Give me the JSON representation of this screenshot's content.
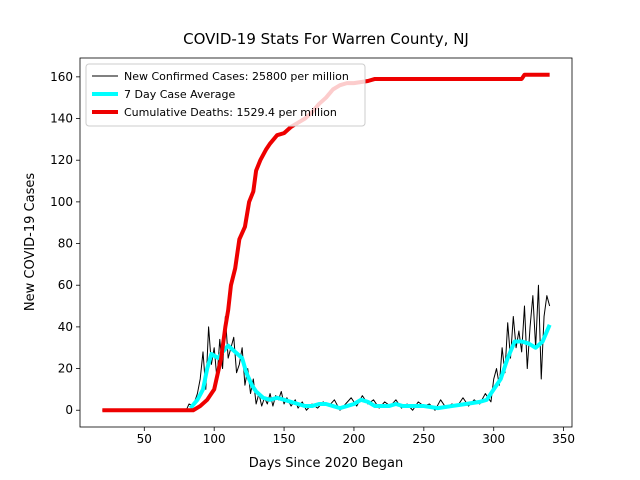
{
  "chart_data": {
    "type": "line",
    "title": "COVID-19 Stats For Warren County, NJ",
    "x_label": "Days Since 2020 Began",
    "y_label": "New COVID-19 Cases",
    "xlim": [
      4,
      356
    ],
    "ylim": [
      -8.05,
      169.05
    ],
    "xticks": [
      50,
      100,
      150,
      200,
      250,
      300,
      350
    ],
    "yticks": [
      0,
      20,
      40,
      60,
      80,
      100,
      120,
      140,
      160
    ],
    "legend": "upper left",
    "series": [
      {
        "name": "New Confirmed Cases: 25800 per million",
        "color": "#000000",
        "x": [
          20,
          80,
          82,
          85,
          88,
          90,
          92,
          94,
          96,
          98,
          100,
          102,
          104,
          106,
          108,
          110,
          112,
          114,
          116,
          118,
          120,
          122,
          124,
          126,
          128,
          130,
          132,
          134,
          136,
          138,
          140,
          142,
          144,
          146,
          148,
          150,
          152,
          155,
          158,
          160,
          163,
          166,
          170,
          174,
          178,
          182,
          186,
          190,
          194,
          198,
          202,
          206,
          210,
          214,
          218,
          222,
          226,
          230,
          234,
          238,
          242,
          246,
          250,
          254,
          258,
          262,
          266,
          270,
          274,
          278,
          282,
          286,
          290,
          294,
          298,
          300,
          302,
          304,
          306,
          308,
          310,
          312,
          314,
          316,
          318,
          320,
          322,
          324,
          326,
          328,
          330,
          332,
          334,
          336,
          338,
          340
        ],
        "values": [
          0,
          0,
          3,
          2,
          8,
          15,
          28,
          10,
          40,
          22,
          30,
          15,
          34,
          20,
          45,
          25,
          30,
          35,
          18,
          22,
          30,
          12,
          20,
          8,
          15,
          3,
          8,
          2,
          6,
          3,
          8,
          2,
          7,
          5,
          9,
          3,
          6,
          2,
          5,
          1,
          4,
          0,
          3,
          1,
          4,
          2,
          5,
          0,
          3,
          6,
          2,
          7,
          3,
          5,
          1,
          4,
          2,
          5,
          1,
          3,
          0,
          4,
          2,
          3,
          0,
          5,
          1,
          3,
          2,
          6,
          2,
          5,
          3,
          8,
          4,
          15,
          20,
          12,
          30,
          18,
          42,
          25,
          45,
          30,
          38,
          28,
          50,
          20,
          40,
          55,
          30,
          60,
          15,
          45,
          55,
          50
        ]
      },
      {
        "name": "7 Day Case Average",
        "color": "#00ffff",
        "x": [
          83,
          88,
          92,
          95,
          98,
          103,
          106,
          110,
          115,
          120,
          123,
          127,
          130,
          135,
          140,
          145,
          150,
          155,
          160,
          165,
          170,
          175,
          180,
          185,
          190,
          195,
          200,
          205,
          210,
          215,
          220,
          225,
          230,
          235,
          240,
          250,
          260,
          270,
          280,
          290,
          295,
          300,
          305,
          310,
          315,
          320,
          325,
          330,
          335,
          340
        ],
        "values": [
          1,
          5,
          10,
          20,
          27,
          25,
          28,
          31,
          28,
          25,
          18,
          12,
          9,
          6,
          5,
          6,
          5,
          4,
          3,
          2,
          2,
          3,
          3,
          2,
          1,
          2,
          3,
          5,
          4,
          2,
          2,
          2,
          3,
          2,
          2,
          2,
          1,
          2,
          3,
          4,
          5,
          10,
          15,
          25,
          33,
          33,
          32,
          30,
          33,
          41
        ]
      },
      {
        "name": "Cumulative Deaths: 1529.4 per million",
        "color": "#ee0000",
        "x": [
          20,
          85,
          90,
          95,
          100,
          105,
          108,
          110,
          112,
          115,
          118,
          122,
          125,
          128,
          130,
          133,
          137,
          140,
          145,
          150,
          155,
          160,
          165,
          170,
          175,
          180,
          185,
          190,
          195,
          200,
          210,
          215,
          250,
          320,
          322,
          340
        ],
        "values": [
          0,
          0,
          2,
          5,
          10,
          25,
          40,
          48,
          60,
          68,
          82,
          88,
          100,
          105,
          115,
          120,
          125,
          128,
          132,
          133,
          136,
          138,
          140,
          143,
          147,
          150,
          154,
          156,
          157,
          157,
          158,
          159,
          159,
          159,
          161,
          161
        ]
      }
    ]
  }
}
